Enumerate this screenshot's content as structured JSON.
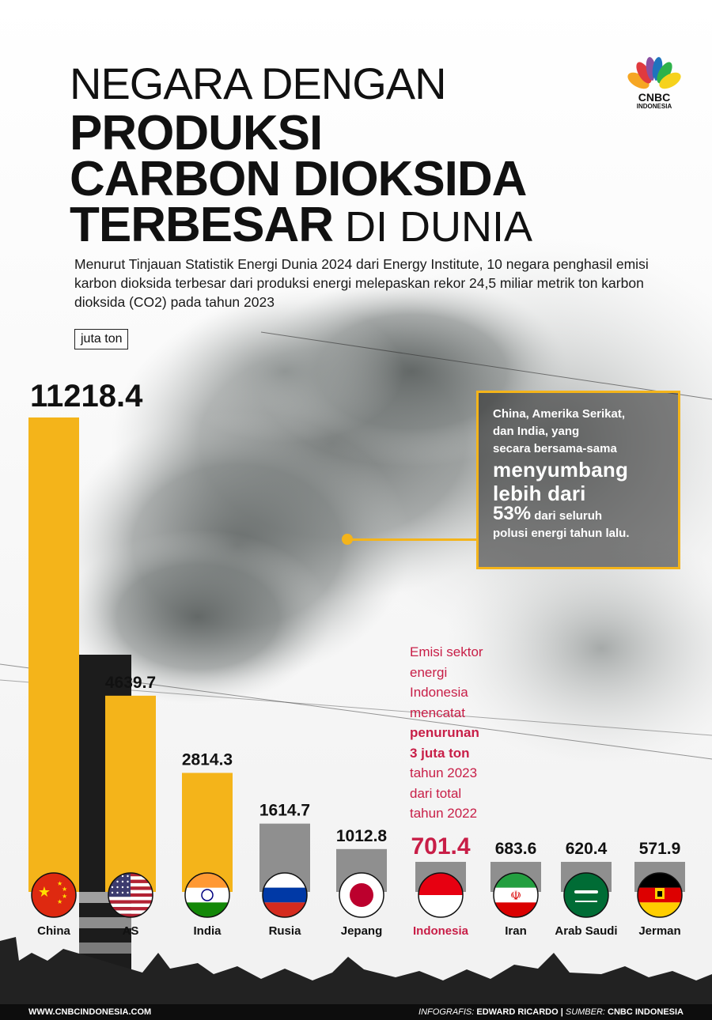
{
  "header": {
    "title_line1": "NEGARA DENGAN",
    "title_line2": "PRODUKSI",
    "title_line3": "CARBON DIOKSIDA",
    "title_line4_bold": "TERBESAR",
    "title_line4_light": " DI DUNIA",
    "logo_text": "CNBC",
    "logo_subtext": "INDONESIA"
  },
  "intro": "Menurut Tinjauan Statistik Energi Dunia 2024 dari Energy Institute, 10 negara penghasil emisi karbon dioksida terbesar dari produksi energi melepaskan rekor 24,5 miliar metrik ton karbon dioksida (CO2) pada tahun 2023",
  "unit_label": "juta ton",
  "callout": {
    "line1": "China, Amerika Serikat,",
    "line2": "dan India, yang",
    "line3": "secara bersama-sama",
    "big1": "menyumbang",
    "big2": "lebih dari",
    "pct": "53%",
    "tail1": " dari seluruh",
    "tail2": "polusi energi tahun lalu."
  },
  "indonesia_note": {
    "l1": "Emisi sektor",
    "l2": "energi",
    "l3": "Indonesia",
    "l4": "mencatat",
    "b1": "penurunan",
    "b2": "3 juta ton",
    "l5": "tahun 2023",
    "l6": "dari total",
    "l7": "tahun 2022"
  },
  "chart_data": {
    "type": "bar",
    "categories": [
      "China",
      "AS",
      "India",
      "Rusia",
      "Jepang",
      "Indonesia",
      "Iran",
      "Arab Saudi",
      "Jerman"
    ],
    "values": [
      11218.4,
      4639.7,
      2814.3,
      1614.7,
      1012.8,
      701.4,
      683.6,
      620.4,
      571.9
    ],
    "value_labels": [
      "11218.4",
      "4639.7",
      "2814.3",
      "1614.7",
      "1012.8",
      "701.4",
      "683.6",
      "620.4",
      "571.9"
    ],
    "bar_colors": [
      "#f4b41a",
      "#f4b41a",
      "#f4b41a",
      "#8f8f8f",
      "#8f8f8f",
      "#8f8f8f",
      "#8f8f8f",
      "#8f8f8f",
      "#8f8f8f"
    ],
    "highlight_category": "Indonesia",
    "highlight_color": "#c81e47",
    "flag_icons": [
      "china-flag-icon",
      "usa-flag-icon",
      "india-flag-icon",
      "russia-flag-icon",
      "japan-flag-icon",
      "indonesia-flag-icon",
      "iran-flag-icon",
      "saudi-flag-icon",
      "germany-flag-icon"
    ],
    "ylabel": "juta ton",
    "ylim": [
      0,
      11218.4
    ]
  },
  "footer": {
    "website": "WWW.CNBCINDONESIA.COM",
    "credit_label": "INFOGRAFIS:",
    "credit_name": " EDWARD RICARDO | ",
    "source_label": "SUMBER:",
    "source_name": " CNBC INDONESIA"
  }
}
